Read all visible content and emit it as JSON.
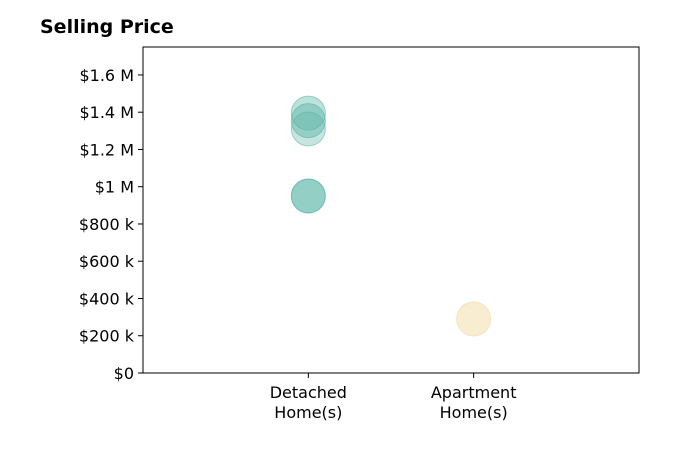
{
  "chart_data": {
    "type": "scatter",
    "title": "Selling Price",
    "categories": [
      "Detached\nHome(s)",
      "Apartment\nHome(s)"
    ],
    "y_ticks": [
      "$0",
      "$200 k",
      "$400 k",
      "$600 k",
      "$800 k",
      "$1 M",
      "$1.2 M",
      "$1.4 M",
      "$1.6 M"
    ],
    "y_tick_values": [
      0,
      200000,
      400000,
      600000,
      800000,
      1000000,
      1200000,
      1400000,
      1600000
    ],
    "ylim": [
      0,
      1750000
    ],
    "x_range": [
      0,
      3
    ],
    "grid": false,
    "series": [
      {
        "category_index": 0,
        "color": "#5bb5a6",
        "points": [
          {
            "x": 1,
            "y": 1395000,
            "opacity": 0.4
          },
          {
            "x": 1,
            "y": 1355000,
            "opacity": 0.45
          },
          {
            "x": 1,
            "y": 1310000,
            "opacity": 0.35
          },
          {
            "x": 1,
            "y": 950000,
            "opacity": 0.65
          }
        ]
      },
      {
        "category_index": 1,
        "color": "#f3dfb3",
        "points": [
          {
            "x": 2,
            "y": 290000,
            "opacity": 0.6
          }
        ]
      }
    ]
  }
}
